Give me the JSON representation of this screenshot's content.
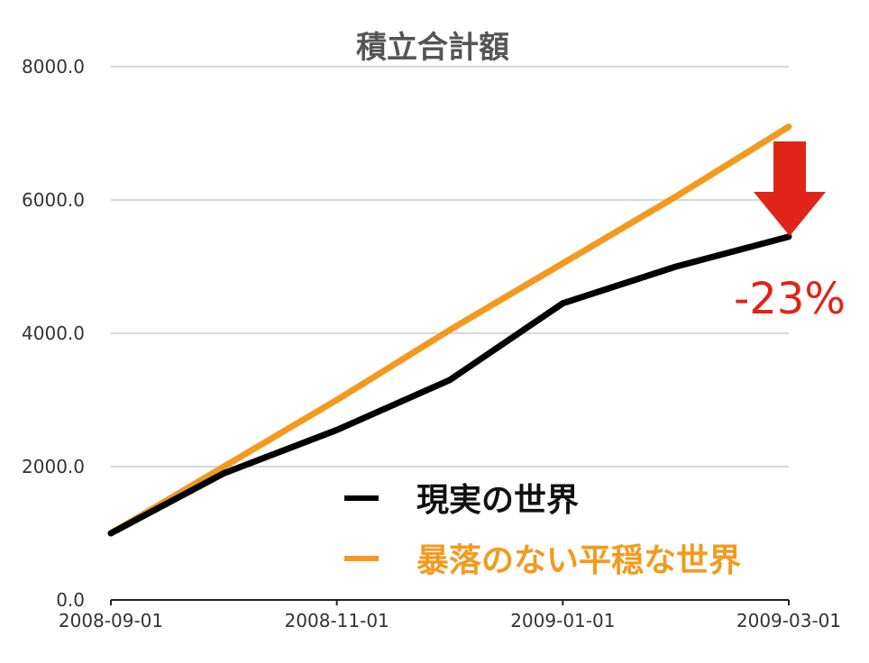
{
  "chart_data": {
    "type": "line",
    "title": "積立合計額",
    "x": [
      "2008-09-01",
      "2008-10-01",
      "2008-11-01",
      "2008-12-01",
      "2009-01-01",
      "2009-02-01",
      "2009-03-01"
    ],
    "x_tick_labels": [
      "2008-09-01",
      "2008-11-01",
      "2009-01-01",
      "2009-03-01"
    ],
    "y_tick_labels": [
      "0.0",
      "2000.0",
      "4000.0",
      "6000.0",
      "8000.0"
    ],
    "ylim": [
      0,
      8000
    ],
    "grid": true,
    "legend_position": "lower-right",
    "series": [
      {
        "name": "現実の世界",
        "color": "#000000",
        "values": [
          1000,
          1900,
          2550,
          3300,
          4450,
          5000,
          5450
        ]
      },
      {
        "name": "暴落のない平穏な世界",
        "color": "#f39a1e",
        "values": [
          1000,
          2000,
          3000,
          4050,
          5050,
          6050,
          7100
        ]
      }
    ],
    "annotation": {
      "text": "-23%",
      "color": "#e02418",
      "icon": "down-arrow-icon"
    }
  }
}
